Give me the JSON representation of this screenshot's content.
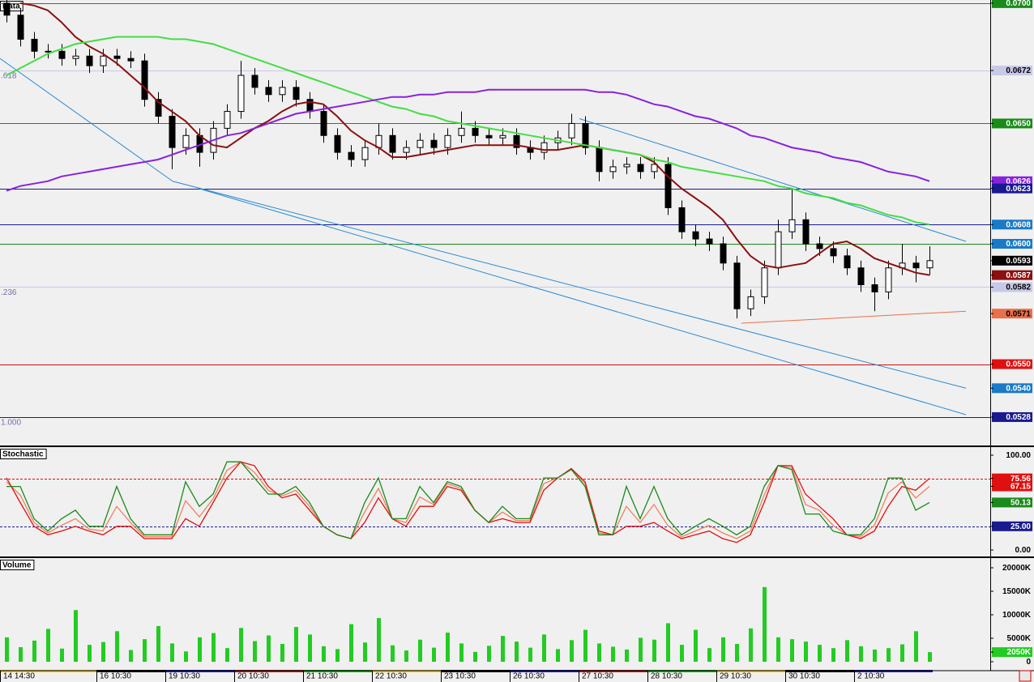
{
  "chart_data": [
    {
      "type": "candlestick",
      "title": "Data",
      "open": [
        0.07,
        0.0695,
        0.0685,
        0.068,
        0.068,
        0.0677,
        0.0678,
        0.0674,
        0.0678,
        0.0677,
        0.0676,
        0.066,
        0.0653,
        0.064,
        0.0645,
        0.0638,
        0.0648,
        0.0655,
        0.067,
        0.0665,
        0.0662,
        0.0665,
        0.066,
        0.0655,
        0.0645,
        0.0638,
        0.0635,
        0.064,
        0.0645,
        0.0638,
        0.064,
        0.0643,
        0.064,
        0.0645,
        0.0648,
        0.0645,
        0.0644,
        0.0645,
        0.064,
        0.0638,
        0.0642,
        0.0644,
        0.065,
        0.064,
        0.063,
        0.0632,
        0.0633,
        0.063,
        0.0633,
        0.0615,
        0.0605,
        0.0602,
        0.06,
        0.0592,
        0.0573,
        0.0578,
        0.059,
        0.0605,
        0.061,
        0.06,
        0.0598,
        0.0595,
        0.059,
        0.0583,
        0.058,
        0.059,
        0.0592,
        0.059
      ],
      "high": [
        0.0703,
        0.0698,
        0.0688,
        0.0683,
        0.0683,
        0.0681,
        0.0681,
        0.0681,
        0.0681,
        0.068,
        0.0679,
        0.0663,
        0.0656,
        0.0648,
        0.0648,
        0.0651,
        0.0658,
        0.0676,
        0.0673,
        0.0668,
        0.0668,
        0.0668,
        0.0663,
        0.0658,
        0.0648,
        0.0641,
        0.0643,
        0.065,
        0.0648,
        0.0643,
        0.0646,
        0.0646,
        0.0648,
        0.0655,
        0.0651,
        0.0648,
        0.0648,
        0.0648,
        0.0643,
        0.0645,
        0.0647,
        0.0654,
        0.0653,
        0.0643,
        0.0635,
        0.0636,
        0.0636,
        0.0636,
        0.0636,
        0.0618,
        0.0608,
        0.0605,
        0.0603,
        0.0595,
        0.0581,
        0.0593,
        0.061,
        0.0623,
        0.0613,
        0.0603,
        0.0601,
        0.0598,
        0.0593,
        0.0586,
        0.0593,
        0.06,
        0.0595,
        0.0599
      ],
      "low": [
        0.0692,
        0.0682,
        0.0677,
        0.0677,
        0.0674,
        0.0674,
        0.0671,
        0.0671,
        0.0674,
        0.0673,
        0.0657,
        0.065,
        0.0631,
        0.0637,
        0.0632,
        0.0635,
        0.0645,
        0.0652,
        0.0662,
        0.0659,
        0.0659,
        0.0657,
        0.0652,
        0.0642,
        0.0635,
        0.0632,
        0.0632,
        0.0637,
        0.0635,
        0.0635,
        0.0637,
        0.0637,
        0.0637,
        0.0642,
        0.0642,
        0.0641,
        0.0641,
        0.0637,
        0.0635,
        0.0635,
        0.0639,
        0.0641,
        0.0637,
        0.0626,
        0.0627,
        0.0629,
        0.0627,
        0.0627,
        0.0612,
        0.0602,
        0.0599,
        0.0597,
        0.0589,
        0.0569,
        0.057,
        0.0575,
        0.0587,
        0.0602,
        0.0597,
        0.0595,
        0.0592,
        0.0587,
        0.058,
        0.0572,
        0.0577,
        0.0587,
        0.0584,
        0.0587
      ],
      "close": [
        0.0695,
        0.0685,
        0.068,
        0.068,
        0.0677,
        0.0678,
        0.0674,
        0.0678,
        0.0677,
        0.0676,
        0.066,
        0.0653,
        0.064,
        0.0645,
        0.0638,
        0.0648,
        0.0655,
        0.067,
        0.0665,
        0.0662,
        0.0665,
        0.066,
        0.0655,
        0.0645,
        0.0638,
        0.0635,
        0.064,
        0.0645,
        0.0638,
        0.064,
        0.0643,
        0.064,
        0.0645,
        0.0648,
        0.0645,
        0.0644,
        0.0645,
        0.064,
        0.0638,
        0.0642,
        0.0644,
        0.065,
        0.064,
        0.063,
        0.0632,
        0.0633,
        0.063,
        0.0633,
        0.0615,
        0.0605,
        0.0602,
        0.06,
        0.0592,
        0.0573,
        0.0578,
        0.059,
        0.0605,
        0.061,
        0.06,
        0.0598,
        0.0595,
        0.059,
        0.0583,
        0.058,
        0.059,
        0.0592,
        0.059,
        0.0593
      ],
      "up_color": "#ffffff",
      "down_color": "#000000",
      "series": [
        {
          "color": "#8b1010",
          "values": [
            null,
            0.07,
            0.0699,
            0.0697,
            0.0692,
            0.0686,
            0.0682,
            0.0679,
            0.0675,
            0.067,
            0.0665,
            0.0659,
            0.0655,
            0.0651,
            0.0645,
            0.0641,
            0.064,
            0.0644,
            0.0648,
            0.0651,
            0.0655,
            0.0658,
            0.0659,
            0.0658,
            0.0653,
            0.0647,
            0.0643,
            0.064,
            0.0636,
            0.0636,
            0.0637,
            0.0638,
            0.0639,
            0.064,
            0.0641,
            0.0641,
            0.0641,
            0.0641,
            0.064,
            0.0639,
            0.0639,
            0.064,
            0.0641,
            0.064,
            0.0639,
            0.0638,
            0.0637,
            0.0634,
            0.0628,
            0.0623,
            0.0619,
            0.0615,
            0.061,
            0.0602,
            0.0595,
            0.0591,
            0.059,
            0.0591,
            0.0592,
            0.0596,
            0.06,
            0.0601,
            0.0598,
            0.0594,
            0.0592,
            0.059,
            0.0588,
            0.0587
          ]
        },
        {
          "color": "#44dd44",
          "values": [
            0.067,
            0.0673,
            0.0676,
            0.0679,
            0.0681,
            0.0683,
            0.0684,
            0.0685,
            0.0686,
            0.0686,
            0.0686,
            0.0686,
            0.0685,
            0.0685,
            0.0684,
            0.0683,
            0.0681,
            0.0679,
            0.0677,
            0.0675,
            0.0673,
            0.0671,
            0.0669,
            0.0667,
            0.0665,
            0.0663,
            0.0661,
            0.0659,
            0.0657,
            0.0656,
            0.0654,
            0.0653,
            0.0651,
            0.065,
            0.0649,
            0.0648,
            0.0647,
            0.0646,
            0.0645,
            0.0644,
            0.0643,
            0.0642,
            0.0641,
            0.064,
            0.0639,
            0.0638,
            0.0637,
            0.0635,
            0.0634,
            0.0632,
            0.0631,
            0.063,
            0.0629,
            0.0628,
            0.0627,
            0.0626,
            0.0624,
            0.0623,
            0.0621,
            0.062,
            0.0619,
            0.0617,
            0.0616,
            0.0614,
            0.0612,
            0.0611,
            0.0609,
            0.0608
          ]
        },
        {
          "color": "#8822dd",
          "values": [
            0.0622,
            0.0624,
            0.0625,
            0.0626,
            0.0628,
            0.0629,
            0.063,
            0.0631,
            0.0632,
            0.0633,
            0.0634,
            0.0635,
            0.0637,
            0.0639,
            0.0641,
            0.0643,
            0.0645,
            0.0646,
            0.0648,
            0.065,
            0.0652,
            0.0654,
            0.0655,
            0.0656,
            0.0657,
            0.0658,
            0.0659,
            0.066,
            0.0661,
            0.0661,
            0.0662,
            0.0662,
            0.0663,
            0.0663,
            0.0663,
            0.0664,
            0.0664,
            0.0664,
            0.0664,
            0.0664,
            0.0664,
            0.0664,
            0.0664,
            0.0663,
            0.0663,
            0.0662,
            0.066,
            0.0658,
            0.0657,
            0.0655,
            0.0653,
            0.0652,
            0.065,
            0.0648,
            0.0645,
            0.0644,
            0.0642,
            0.064,
            0.0639,
            0.0638,
            0.0636,
            0.0635,
            0.0634,
            0.0632,
            0.063,
            0.0629,
            0.0628,
            0.0626
          ]
        }
      ],
      "levels": [
        {
          "value": 0.07,
          "color": "#1a8a1a"
        },
        {
          "value": 0.0672,
          "color": "#c8c8e8"
        },
        {
          "value": 0.065,
          "color": "#1a8a1a"
        },
        {
          "value": 0.0623,
          "color": "#1a1a90"
        },
        {
          "value": 0.0608,
          "color": "#1a1a90"
        },
        {
          "value": 0.06,
          "color": "#1a8a1a"
        },
        {
          "value": 0.0582,
          "color": "#c8c8e8"
        },
        {
          "value": 0.055,
          "color": "#d01010"
        },
        {
          "value": 0.0528,
          "color": "#1a1a90"
        }
      ],
      "trendlines": [
        {
          "color": "#2a8ad0",
          "start": [
            -0.47,
            0.0677
          ],
          "end": [
            12.06,
            0.0626
          ]
        },
        {
          "color": "#2a8ad0",
          "start": [
            12.06,
            0.0626
          ],
          "end": [
            69.65,
            0.054
          ]
        },
        {
          "color": "#2a8ad0",
          "start": [
            13.94,
            0.0623
          ],
          "end": [
            69.65,
            0.0529
          ]
        },
        {
          "color": "#2a8ad0",
          "start": [
            41.59,
            0.0652
          ],
          "end": [
            69.65,
            0.0601
          ]
        },
        {
          "color": "#e8704a",
          "start": [
            53.35,
            0.0567
          ],
          "end": [
            69.65,
            0.0572
          ]
        }
      ],
      "fib_labels": [
        {
          "value": 0.0672,
          "label": ".618"
        },
        {
          "value": 0.0582,
          "label": ".236"
        },
        {
          "value": 0.0528,
          "label": "1.000"
        }
      ],
      "ylim": [
        0.05162,
        0.07013
      ],
      "yticks": [
        {
          "value": 0.07,
          "label": "0.0700"
        },
        {
          "value": 0.0672,
          "label": "0.0672"
        },
        {
          "value": 0.065,
          "label": "0.0650"
        },
        {
          "value": 0.0626,
          "label": "0.0626"
        },
        {
          "value": 0.0623,
          "label": "0.0623"
        },
        {
          "value": 0.0608,
          "label": "0.0608"
        },
        {
          "value": 0.06,
          "label": "0.0600"
        },
        {
          "value": 0.0593,
          "label": "0.0593"
        },
        {
          "value": 0.0587,
          "label": "0.0587"
        },
        {
          "value": 0.0582,
          "label": "0.0582"
        },
        {
          "value": 0.0571,
          "label": "0.0571"
        },
        {
          "value": 0.055,
          "label": "0.0550"
        },
        {
          "value": 0.054,
          "label": "0.0540"
        },
        {
          "value": 0.0528,
          "label": "0.0528"
        }
      ],
      "ytick_colors": [
        "#1a8a1a",
        "#c8c8e8",
        "#1a8a1a",
        "#8822dd",
        "#1a1a90",
        "#1a7ac8",
        "#1a7ac8",
        "#000000",
        "#8b1010",
        "#c8c8e8",
        "#e8704a",
        "#e01010",
        "#1a7ac8",
        "#1a1a90"
      ]
    },
    {
      "type": "line",
      "title": "Stochastic",
      "series": [
        {
          "color": "#f08060",
          "values": [
            72,
            58,
            29,
            18,
            26,
            33,
            22,
            20,
            46,
            29,
            14,
            14,
            14,
            52,
            35,
            54,
            84,
            93,
            82,
            63,
            57,
            63,
            46,
            25,
            16,
            12,
            40,
            65,
            33,
            29,
            56,
            48,
            70,
            65,
            42,
            29,
            40,
            31,
            31,
            70,
            76,
            85,
            70,
            18,
            16,
            46,
            29,
            48,
            26,
            14,
            20,
            26,
            18,
            12,
            20,
            58,
            89,
            87,
            48,
            42,
            26,
            16,
            14,
            26,
            60,
            72,
            55,
            67.15
          ]
        },
        {
          "color": "#e01010",
          "values": [
            76,
            50,
            25,
            16,
            20,
            25,
            20,
            16,
            25,
            25,
            12,
            12,
            12,
            33,
            25,
            50,
            76,
            93,
            89,
            67,
            55,
            59,
            42,
            25,
            16,
            12,
            29,
            55,
            33,
            25,
            46,
            46,
            67,
            63,
            42,
            29,
            33,
            29,
            29,
            63,
            76,
            86,
            72,
            20,
            16,
            25,
            25,
            29,
            20,
            12,
            16,
            20,
            12,
            8,
            16,
            50,
            89,
            89,
            59,
            46,
            33,
            16,
            12,
            20,
            46,
            67,
            63,
            75.56
          ]
        },
        {
          "color": "#1a8a1a",
          "values": [
            67,
            67,
            33,
            20,
            33,
            42,
            25,
            25,
            67,
            33,
            16,
            16,
            16,
            72,
            46,
            59,
            93,
            93,
            76,
            59,
            59,
            67,
            50,
            25,
            16,
            12,
            50,
            76,
            33,
            33,
            67,
            50,
            72,
            67,
            42,
            29,
            46,
            33,
            33,
            76,
            76,
            85,
            67,
            16,
            16,
            67,
            33,
            67,
            33,
            16,
            25,
            33,
            25,
            16,
            25,
            67,
            89,
            85,
            38,
            38,
            20,
            16,
            16,
            33,
            76,
            76,
            42,
            50.13
          ]
        }
      ],
      "levels": [
        {
          "value": 75,
          "color": "#d01010"
        },
        {
          "value": 25,
          "color": "#1a1a90"
        }
      ],
      "level_style": "dashed",
      "ylim": [
        -6.8,
        107.7
      ],
      "yticks": [
        {
          "value": 100,
          "label": "100.00"
        },
        {
          "value": 75.56,
          "label": "75.56"
        },
        {
          "value": 67.15,
          "label": "67.15"
        },
        {
          "value": 50.13,
          "label": "50.13"
        },
        {
          "value": 25,
          "label": "25.00"
        },
        {
          "value": 0,
          "label": "0.00"
        }
      ],
      "ytick_colors": [
        "transparent",
        "#e01010",
        "#e01010",
        "#1a8a1a",
        "#1a1a90",
        "transparent"
      ]
    },
    {
      "type": "bar",
      "title": "Volume",
      "color": "#22cc22",
      "categories": [
        "14 14:30",
        null,
        null,
        null,
        null,
        null,
        null,
        "16 10:30",
        null,
        null,
        null,
        null,
        "19 10:30",
        null,
        null,
        null,
        null,
        "20 10:30",
        null,
        null,
        null,
        null,
        "21 10:30",
        null,
        null,
        null,
        null,
        "22 10:30",
        null,
        null,
        null,
        null,
        "23 10:30",
        null,
        null,
        null,
        null,
        "26 10:30",
        null,
        null,
        null,
        null,
        "27 10:30",
        null,
        null,
        null,
        null,
        "28 10:30",
        null,
        null,
        null,
        null,
        "29 10:30",
        null,
        null,
        null,
        null,
        "30 10:30",
        null,
        null,
        null,
        null,
        "2 10:30",
        null,
        null,
        null,
        null,
        null
      ],
      "values": [
        5200,
        3100,
        4500,
        7000,
        2800,
        11000,
        3600,
        4200,
        6500,
        2500,
        4800,
        7600,
        3900,
        2200,
        5200,
        6100,
        2900,
        7200,
        4400,
        5600,
        3800,
        7400,
        5800,
        3300,
        2700,
        8000,
        4100,
        9300,
        3500,
        2400,
        4700,
        3000,
        6200,
        3900,
        2100,
        3400,
        5500,
        4300,
        3000,
        5800,
        2700,
        4600,
        6800,
        3900,
        3200,
        2600,
        5100,
        4700,
        8200,
        3600,
        6800,
        2900,
        5200,
        3800,
        7100,
        15900,
        5200,
        4800,
        4300,
        3600,
        2900,
        4600,
        3300,
        2600,
        2900,
        3700,
        6500,
        2050
      ],
      "ylim": [
        -1552,
        21897
      ],
      "yticks": [
        {
          "value": 20000,
          "label": "20000K"
        },
        {
          "value": 15000,
          "label": "15000K"
        },
        {
          "value": 10000,
          "label": "10000K"
        },
        {
          "value": 5000,
          "label": "5000K"
        },
        {
          "value": 2050,
          "label": "2050K"
        },
        0
      ],
      "ytick_colors": [
        "transparent",
        "transparent",
        "transparent",
        "transparent",
        "#22cc22",
        "transparent"
      ]
    }
  ]
}
